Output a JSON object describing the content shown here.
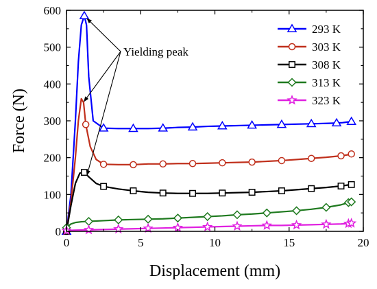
{
  "chart_data": {
    "type": "line",
    "title": "",
    "xlabel": "Displacement (mm)",
    "ylabel": "Force (N)",
    "xlim": [
      0,
      20
    ],
    "ylim": [
      0,
      600
    ],
    "x_ticks": [
      0,
      5,
      10,
      15,
      20
    ],
    "y_ticks": [
      0,
      100,
      200,
      300,
      400,
      500,
      600
    ],
    "grid": false,
    "legend_position": "top-right",
    "annotation": "Yielding peak",
    "series": [
      {
        "name": "293 K",
        "color": "#0000ff",
        "marker": "triangle",
        "x": [
          0.0,
          0.3,
          0.6,
          0.8,
          1.0,
          1.2,
          1.35,
          1.5,
          1.8,
          2.5,
          3.5,
          4.5,
          5.5,
          6.5,
          7.5,
          8.5,
          9.5,
          10.5,
          11.5,
          12.5,
          13.5,
          14.5,
          15.5,
          16.5,
          17.5,
          18.2,
          18.6,
          18.8,
          19.0,
          19.2
        ],
        "y": [
          0,
          100,
          300,
          460,
          560,
          585,
          560,
          420,
          300,
          280,
          279,
          279,
          279,
          280,
          282,
          283,
          285,
          286,
          287,
          288,
          289,
          290,
          291,
          292,
          293,
          294,
          295,
          296,
          297,
          298
        ]
      },
      {
        "name": "303 K",
        "color": "#c0301c",
        "marker": "circle",
        "x": [
          0.0,
          0.3,
          0.6,
          0.8,
          1.0,
          1.15,
          1.3,
          1.6,
          2.0,
          2.5,
          3.5,
          4.5,
          5.5,
          6.5,
          7.5,
          8.5,
          9.5,
          10.5,
          11.5,
          12.5,
          13.5,
          14.5,
          15.5,
          16.5,
          17.5,
          18.5,
          19.0,
          19.2
        ],
        "y": [
          0,
          80,
          200,
          300,
          360,
          350,
          290,
          230,
          195,
          182,
          181,
          181,
          183,
          183,
          184,
          184,
          185,
          186,
          187,
          188,
          190,
          192,
          195,
          198,
          201,
          205,
          208,
          210
        ]
      },
      {
        "name": "308 K",
        "color": "#000000",
        "marker": "square",
        "x": [
          0.0,
          0.3,
          0.6,
          0.9,
          1.2,
          1.5,
          2.0,
          2.5,
          3.5,
          4.5,
          5.5,
          6.5,
          7.5,
          8.5,
          9.5,
          10.5,
          11.5,
          12.5,
          13.5,
          14.5,
          15.5,
          16.5,
          17.5,
          18.5,
          19.0,
          19.2
        ],
        "y": [
          0,
          70,
          130,
          158,
          160,
          148,
          130,
          122,
          115,
          110,
          106,
          104,
          103,
          103,
          103,
          104,
          105,
          106,
          108,
          110,
          113,
          116,
          119,
          123,
          126,
          127
        ]
      },
      {
        "name": "313 K",
        "color": "#1f7a1f",
        "marker": "diamond",
        "x": [
          0.0,
          0.3,
          0.6,
          1.0,
          1.5,
          2.5,
          3.5,
          4.5,
          5.5,
          6.5,
          7.5,
          8.5,
          9.5,
          10.5,
          11.5,
          12.5,
          13.5,
          14.5,
          15.5,
          16.5,
          17.5,
          18.5,
          19.0,
          19.2
        ],
        "y": [
          10,
          20,
          24,
          26,
          27,
          29,
          31,
          32,
          33,
          34,
          36,
          38,
          40,
          42,
          45,
          47,
          50,
          53,
          56,
          60,
          65,
          72,
          78,
          80
        ]
      },
      {
        "name": "323 K",
        "color": "#e020e0",
        "marker": "star",
        "x": [
          0.0,
          0.5,
          1.5,
          2.5,
          3.5,
          4.5,
          5.5,
          6.5,
          7.5,
          8.5,
          9.5,
          10.5,
          11.5,
          12.5,
          13.5,
          14.5,
          15.5,
          16.5,
          17.5,
          18.5,
          19.0,
          19.2
        ],
        "y": [
          2,
          3,
          4,
          5,
          6,
          7,
          8,
          9,
          10,
          11,
          12,
          13,
          14,
          15,
          16,
          16,
          17,
          18,
          19,
          20,
          21,
          22
        ]
      }
    ]
  }
}
